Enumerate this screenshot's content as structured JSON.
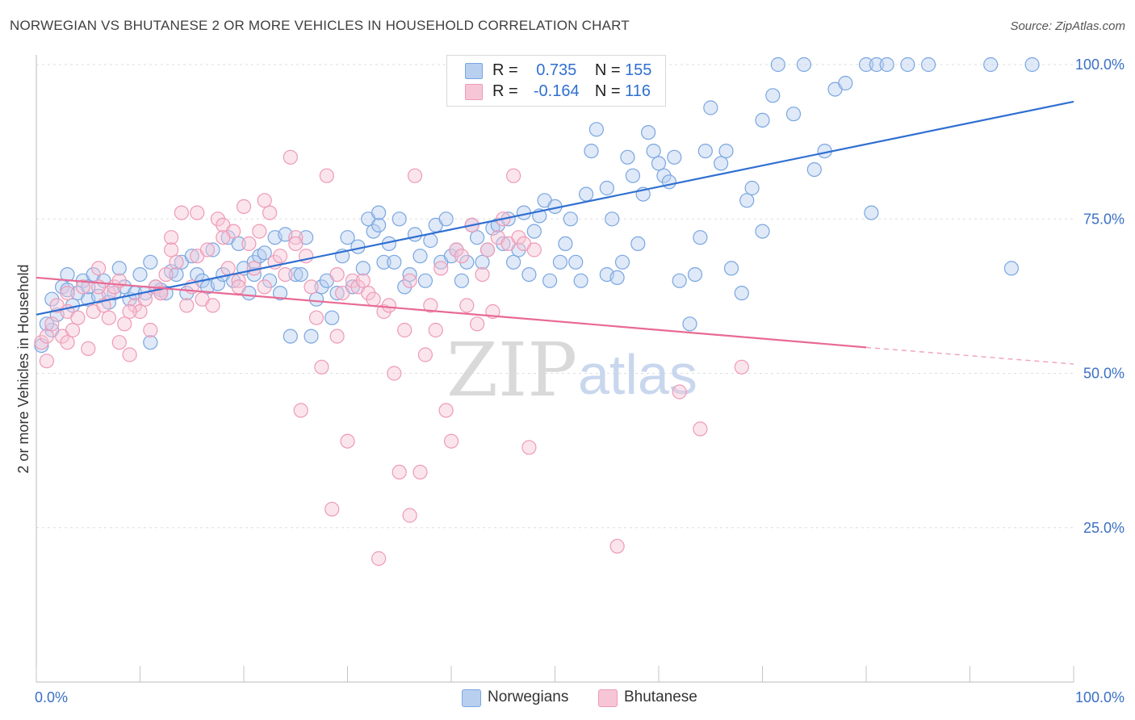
{
  "title": "NORWEGIAN VS BHUTANESE 2 OR MORE VEHICLES IN HOUSEHOLD CORRELATION CHART",
  "source": "Source: ZipAtlas.com",
  "watermark": {
    "zip": "ZIP",
    "atlas": "atlas"
  },
  "legend": {
    "r_label": "R =",
    "n_label": "N =",
    "series": [
      {
        "name": "Norwegians",
        "r": "0.735",
        "n": "155",
        "color": "#7aa6e0",
        "fill": "#b8cff0"
      },
      {
        "name": "Bhutanese",
        "r": "-0.164",
        "n": "116",
        "color": "#ee9ab5",
        "fill": "#f7c6d6"
      }
    ]
  },
  "chart_data": {
    "type": "scatter",
    "title": "NORWEGIAN VS BHUTANESE 2 OR MORE VEHICLES IN HOUSEHOLD CORRELATION CHART",
    "xlabel": "",
    "ylabel": "2 or more Vehicles in Household",
    "xlim": [
      0,
      100
    ],
    "ylim": [
      0,
      102
    ],
    "x_tick_labels": [
      "0.0%",
      "100.0%"
    ],
    "y_ticks": [
      25,
      50,
      75,
      100
    ],
    "y_tick_labels": [
      "25.0%",
      "50.0%",
      "75.0%",
      "100.0%"
    ],
    "grid": true,
    "legend_position": "top-center",
    "series": [
      {
        "name": "Norwegians",
        "color": "#7aa6e0",
        "trend": {
          "x": [
            0,
            100
          ],
          "y": [
            59.5,
            94.0
          ],
          "color": "#2f6fd1"
        },
        "points": [
          [
            0.5,
            54.5
          ],
          [
            1.5,
            57
          ],
          [
            1,
            58
          ],
          [
            2,
            59.5
          ],
          [
            1.5,
            62
          ],
          [
            2.5,
            64
          ],
          [
            3,
            63.5
          ],
          [
            3,
            66
          ],
          [
            3.5,
            61
          ],
          [
            4,
            63
          ],
          [
            4.5,
            65
          ],
          [
            5,
            62
          ],
          [
            5,
            64
          ],
          [
            5.5,
            66
          ],
          [
            6,
            62.5
          ],
          [
            6.5,
            65
          ],
          [
            7,
            61.5
          ],
          [
            7.5,
            63
          ],
          [
            8,
            67
          ],
          [
            8.5,
            64
          ],
          [
            9,
            62
          ],
          [
            9.5,
            63
          ],
          [
            10,
            66
          ],
          [
            10.5,
            63
          ],
          [
            11,
            68
          ],
          [
            11,
            55
          ],
          [
            11.5,
            64
          ],
          [
            12,
            63.5
          ],
          [
            12.5,
            63
          ],
          [
            13,
            66.5
          ],
          [
            13.5,
            66
          ],
          [
            14,
            68
          ],
          [
            14.5,
            63
          ],
          [
            15,
            69
          ],
          [
            15.5,
            66
          ],
          [
            16,
            65
          ],
          [
            16.5,
            64
          ],
          [
            17,
            70
          ],
          [
            17.5,
            64.5
          ],
          [
            18,
            66
          ],
          [
            18.5,
            72
          ],
          [
            19,
            65
          ],
          [
            19.5,
            71
          ],
          [
            20,
            67
          ],
          [
            20.5,
            63
          ],
          [
            21,
            68
          ],
          [
            21,
            66
          ],
          [
            21.5,
            69
          ],
          [
            22,
            69.5
          ],
          [
            22.5,
            65
          ],
          [
            23,
            72
          ],
          [
            23.5,
            63
          ],
          [
            24,
            72.5
          ],
          [
            24.5,
            56
          ],
          [
            25,
            66
          ],
          [
            25.5,
            66
          ],
          [
            26,
            72
          ],
          [
            26.5,
            56
          ],
          [
            27,
            62
          ],
          [
            27.5,
            64
          ],
          [
            28,
            65
          ],
          [
            28.5,
            59
          ],
          [
            29,
            63
          ],
          [
            29.5,
            69
          ],
          [
            30,
            72
          ],
          [
            30.5,
            64
          ],
          [
            31,
            70.5
          ],
          [
            31.5,
            67
          ],
          [
            32,
            75
          ],
          [
            32.5,
            73
          ],
          [
            33,
            74
          ],
          [
            33,
            76
          ],
          [
            33.5,
            68
          ],
          [
            34,
            71
          ],
          [
            34.5,
            68
          ],
          [
            35,
            75
          ],
          [
            35.5,
            64
          ],
          [
            36,
            66
          ],
          [
            36.5,
            72.5
          ],
          [
            37,
            69
          ],
          [
            37.5,
            65
          ],
          [
            38,
            71.5
          ],
          [
            38.5,
            74
          ],
          [
            39,
            68
          ],
          [
            39.5,
            75
          ],
          [
            40,
            69
          ],
          [
            40.5,
            70
          ],
          [
            41,
            65
          ],
          [
            41.5,
            68
          ],
          [
            42,
            74
          ],
          [
            42.5,
            72
          ],
          [
            43,
            68
          ],
          [
            43.5,
            70
          ],
          [
            44,
            73.5
          ],
          [
            44.5,
            74
          ],
          [
            45,
            71
          ],
          [
            45.5,
            75
          ],
          [
            46,
            68
          ],
          [
            46.5,
            70
          ],
          [
            47,
            76
          ],
          [
            47.5,
            66
          ],
          [
            48,
            73
          ],
          [
            48.5,
            75.5
          ],
          [
            49,
            78
          ],
          [
            49.5,
            65
          ],
          [
            50,
            77
          ],
          [
            50.5,
            68
          ],
          [
            51,
            71
          ],
          [
            51.5,
            75
          ],
          [
            52,
            68
          ],
          [
            52.5,
            65
          ],
          [
            53,
            79
          ],
          [
            53.5,
            86
          ],
          [
            54,
            89.5
          ],
          [
            55,
            80
          ],
          [
            55.5,
            75
          ],
          [
            55,
            66
          ],
          [
            56,
            65.5
          ],
          [
            56.5,
            68
          ],
          [
            57,
            85
          ],
          [
            57.5,
            82
          ],
          [
            58,
            71
          ],
          [
            58.5,
            79
          ],
          [
            59,
            89
          ],
          [
            59.5,
            86
          ],
          [
            60,
            84
          ],
          [
            60.5,
            82
          ],
          [
            61,
            81
          ],
          [
            61.5,
            85
          ],
          [
            62,
            65
          ],
          [
            63,
            58
          ],
          [
            63.5,
            66
          ],
          [
            64,
            72
          ],
          [
            64.5,
            86
          ],
          [
            65,
            93
          ],
          [
            66,
            84
          ],
          [
            66.5,
            86
          ],
          [
            67,
            67
          ],
          [
            68,
            63
          ],
          [
            68.5,
            78
          ],
          [
            69,
            80
          ],
          [
            70,
            91
          ],
          [
            70,
            73
          ],
          [
            71,
            95
          ],
          [
            71.5,
            100
          ],
          [
            73,
            92
          ],
          [
            74,
            100
          ],
          [
            75,
            83
          ],
          [
            76,
            86
          ],
          [
            77,
            96
          ],
          [
            78,
            97
          ],
          [
            80,
            100
          ],
          [
            80.5,
            76
          ],
          [
            81,
            100
          ],
          [
            82,
            100
          ],
          [
            84,
            100
          ],
          [
            86,
            100
          ],
          [
            92,
            100
          ],
          [
            94,
            67
          ],
          [
            96,
            100
          ]
        ]
      },
      {
        "name": "Bhutanese",
        "color": "#ee9ab5",
        "trend": {
          "x": [
            0,
            80
          ],
          "y": [
            65.5,
            54.2
          ],
          "dashed_to": [
            100,
            51.5
          ],
          "color": "#e86a94"
        },
        "points": [
          [
            0.5,
            55
          ],
          [
            1,
            56
          ],
          [
            1.5,
            58
          ],
          [
            2,
            61
          ],
          [
            2.5,
            56
          ],
          [
            3,
            60
          ],
          [
            3,
            63
          ],
          [
            3.5,
            57
          ],
          [
            4,
            59
          ],
          [
            4.5,
            64
          ],
          [
            5,
            54
          ],
          [
            5.5,
            60
          ],
          [
            6,
            67
          ],
          [
            6.5,
            61
          ],
          [
            7,
            63
          ],
          [
            7.5,
            64
          ],
          [
            8,
            55
          ],
          [
            8.5,
            58
          ],
          [
            9,
            53
          ],
          [
            9.5,
            61
          ],
          [
            10,
            60
          ],
          [
            10.5,
            62
          ],
          [
            11,
            57
          ],
          [
            11.5,
            64
          ],
          [
            12,
            63
          ],
          [
            12.5,
            66
          ],
          [
            13,
            72
          ],
          [
            13.5,
            68
          ],
          [
            14,
            76
          ],
          [
            14.5,
            61
          ],
          [
            15,
            64
          ],
          [
            15.5,
            69
          ],
          [
            16,
            62
          ],
          [
            16.5,
            70
          ],
          [
            17,
            61
          ],
          [
            17.5,
            75
          ],
          [
            18,
            74
          ],
          [
            18.5,
            67
          ],
          [
            19,
            73
          ],
          [
            19.5,
            65
          ],
          [
            20,
            77
          ],
          [
            20.5,
            71
          ],
          [
            21,
            67
          ],
          [
            21.5,
            73
          ],
          [
            22,
            64
          ],
          [
            22.5,
            76
          ],
          [
            23,
            68
          ],
          [
            23.5,
            69
          ],
          [
            24,
            66
          ],
          [
            24.5,
            85
          ],
          [
            25,
            72
          ],
          [
            25.5,
            44
          ],
          [
            26,
            69
          ],
          [
            26.5,
            64
          ],
          [
            27,
            59
          ],
          [
            27.5,
            51
          ],
          [
            28,
            82
          ],
          [
            28.5,
            28
          ],
          [
            29,
            66
          ],
          [
            29.5,
            63
          ],
          [
            30,
            39
          ],
          [
            30.5,
            65
          ],
          [
            31,
            64
          ],
          [
            31.5,
            65
          ],
          [
            32,
            63
          ],
          [
            32.5,
            62
          ],
          [
            33,
            20
          ],
          [
            33.5,
            60
          ],
          [
            34,
            61
          ],
          [
            34.5,
            50
          ],
          [
            35,
            34
          ],
          [
            35.5,
            57
          ],
          [
            36,
            27
          ],
          [
            36.5,
            82
          ],
          [
            37,
            34
          ],
          [
            37.5,
            53
          ],
          [
            38,
            61
          ],
          [
            38.5,
            57
          ],
          [
            39,
            67
          ],
          [
            39.5,
            44
          ],
          [
            40,
            39
          ],
          [
            40.5,
            70
          ],
          [
            41,
            69
          ],
          [
            41.5,
            61
          ],
          [
            42,
            74
          ],
          [
            42.5,
            58
          ],
          [
            43,
            66
          ],
          [
            43.5,
            70
          ],
          [
            44,
            60
          ],
          [
            44.5,
            72
          ],
          [
            45,
            75
          ],
          [
            45.5,
            71
          ],
          [
            46,
            82
          ],
          [
            46.5,
            72
          ],
          [
            47,
            71
          ],
          [
            47.5,
            38
          ],
          [
            48,
            70
          ],
          [
            56,
            22
          ],
          [
            62,
            47
          ],
          [
            64,
            41
          ],
          [
            68,
            51
          ],
          [
            29,
            56
          ],
          [
            3,
            55
          ],
          [
            7,
            59
          ],
          [
            9,
            60
          ],
          [
            15.5,
            76
          ],
          [
            12,
            63
          ],
          [
            22,
            78
          ],
          [
            18,
            72
          ],
          [
            6,
            64
          ],
          [
            8,
            65
          ],
          [
            13,
            70
          ],
          [
            19.5,
            64
          ],
          [
            25,
            71
          ],
          [
            1,
            52
          ],
          [
            36,
            65
          ]
        ]
      }
    ]
  }
}
